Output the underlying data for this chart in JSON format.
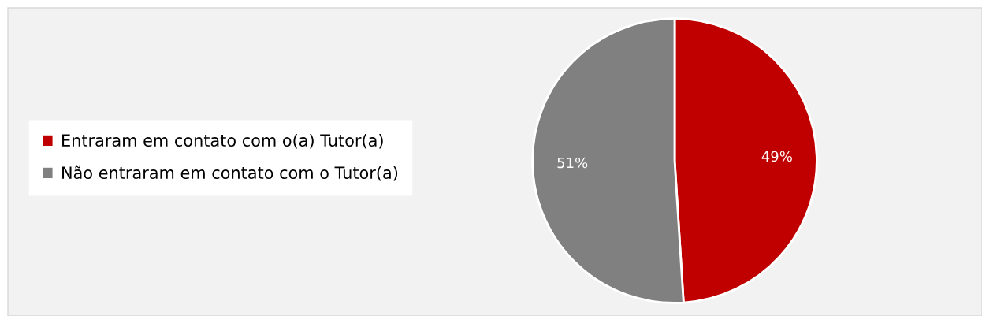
{
  "chart_data": {
    "type": "pie",
    "categories": [
      "Entraram em contato com o(a) Tutor(a)",
      "Não entraram em contato com o Tutor(a)"
    ],
    "values": [
      49,
      51
    ],
    "colors": [
      "#c00000",
      "#808080"
    ],
    "data_labels": true,
    "value_labels": [
      "49%",
      "51%"
    ],
    "legend": "left"
  }
}
